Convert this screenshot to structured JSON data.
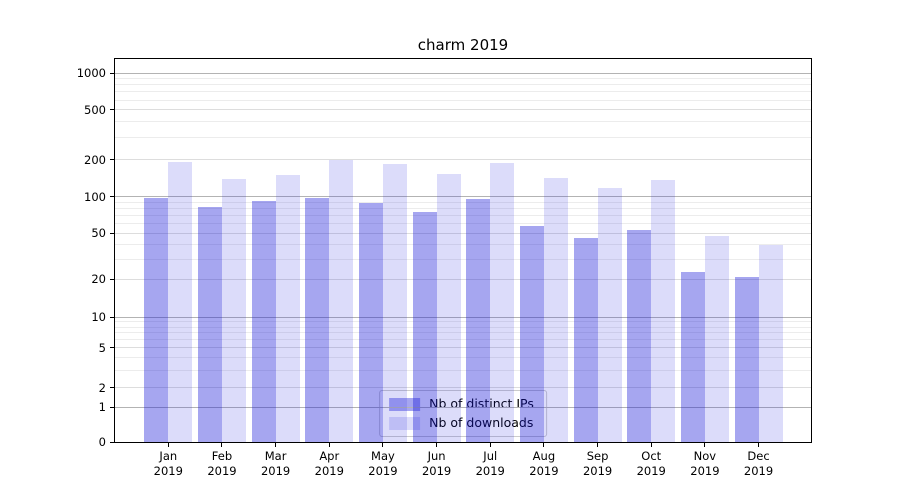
{
  "title": "charm 2019",
  "chart_data": {
    "type": "bar",
    "title": "charm 2019",
    "scale": "symlog",
    "grid": true,
    "legend_position": "lower center",
    "categories": [
      "Jan",
      "Feb",
      "Mar",
      "Apr",
      "May",
      "Jun",
      "Jul",
      "Aug",
      "Sep",
      "Oct",
      "Nov",
      "Dec"
    ],
    "x_year_label": "2019",
    "y_ticks": [
      0,
      1,
      2,
      5,
      10,
      20,
      50,
      100,
      200,
      500,
      1000
    ],
    "series": [
      {
        "name": "Nb of distinct IPs",
        "color_hex": "#a6a6f0",
        "color_rgba": "rgba(21,21,215,0.38)",
        "values": [
          98,
          82,
          92,
          97,
          88,
          75,
          95,
          58,
          46,
          53,
          23,
          21
        ]
      },
      {
        "name": "Nb of downloads",
        "color_hex": "#dcdcfa",
        "color_rgba": "rgba(36,36,224,0.16)",
        "values": [
          190,
          139,
          151,
          200,
          186,
          152,
          189,
          142,
          117,
          136,
          48,
          40
        ]
      }
    ]
  }
}
